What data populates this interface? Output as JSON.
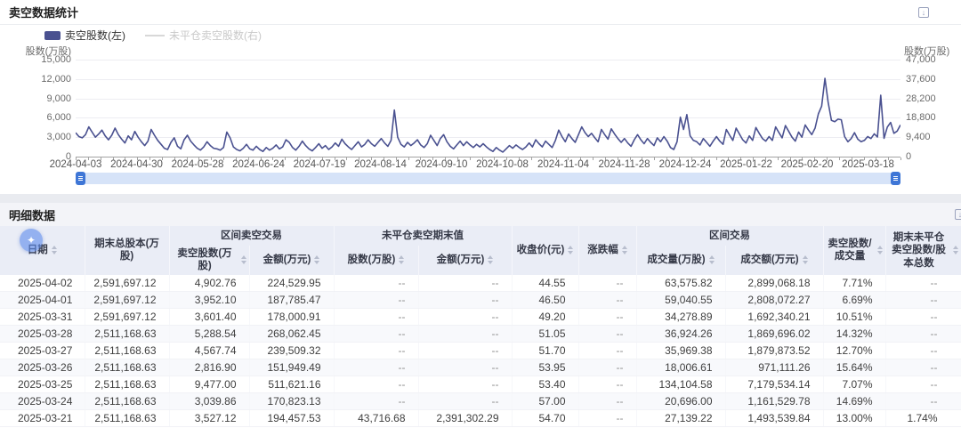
{
  "chart_panel": {
    "title": "卖空数据统计",
    "legend": [
      {
        "label": "卖空股数(左)",
        "color": "#4a5190",
        "active": true
      },
      {
        "label": "未平仓卖空股数(右)",
        "color": "#d8d8d8",
        "active": false
      }
    ],
    "ylabel_left": "股数(万股)",
    "ylabel_right": "股数(万股)"
  },
  "chart_data": {
    "type": "line",
    "title": "卖空数据统计",
    "grid": true,
    "legend_position": "top-left",
    "ylabel_left": "股数(万股)",
    "ylabel_right": "股数(万股)",
    "ylim_left": [
      0,
      15000
    ],
    "ylim_right": [
      0,
      47000
    ],
    "yticks_left": [
      "15,000",
      "12,000",
      "9,000",
      "6,000",
      "3,000",
      "0"
    ],
    "yticks_right": [
      "47,000",
      "37,600",
      "28,200",
      "18,800",
      "9,400",
      "0"
    ],
    "xticks": [
      "2024-04-03",
      "2024-04-30",
      "2024-05-28",
      "2024-06-24",
      "2024-07-19",
      "2024-08-14",
      "2024-09-10",
      "2024-10-08",
      "2024-11-04",
      "2024-11-28",
      "2024-12-24",
      "2025-01-22",
      "2025-02-20",
      "2025-03-18"
    ],
    "series": [
      {
        "name": "卖空股数(左)",
        "axis": "left",
        "color": "#4a5190",
        "values": [
          3700,
          3100,
          2900,
          3400,
          4600,
          3800,
          3000,
          3500,
          4100,
          3200,
          2600,
          3300,
          4400,
          3400,
          2700,
          2100,
          3200,
          2600,
          3900,
          3000,
          2300,
          1700,
          2400,
          4200,
          3300,
          2500,
          1900,
          1300,
          1100,
          2200,
          2900,
          1600,
          1200,
          2600,
          3300,
          2400,
          1800,
          1300,
          1000,
          1500,
          2300,
          1700,
          1300,
          1200,
          1000,
          1400,
          3800,
          2900,
          1500,
          1100,
          900,
          1300,
          1900,
          1200,
          1000,
          1600,
          1100,
          800,
          1400,
          1000,
          1300,
          1800,
          1200,
          1500,
          2600,
          2200,
          1400,
          1000,
          1600,
          2400,
          1700,
          1200,
          900,
          1400,
          2000,
          1300,
          1700,
          1100,
          1500,
          2100,
          1600,
          2700,
          2000,
          1500,
          1100,
          1700,
          2300,
          1500,
          1900,
          2600,
          2000,
          1600,
          2200,
          2800,
          2100,
          1600,
          2500,
          7200,
          3000,
          1900,
          1500,
          2200,
          1700,
          2100,
          2600,
          1800,
          1400,
          2000,
          3300,
          2500,
          1700,
          2800,
          3400,
          2300,
          1600,
          1200,
          1800,
          2400,
          1700,
          2300,
          1800,
          1400,
          1900,
          1500,
          2000,
          1500,
          1100,
          800,
          1400,
          1000,
          700,
          1200,
          1700,
          1300,
          1800,
          1400,
          1100,
          1500,
          2100,
          1500,
          2600,
          2000,
          1500,
          2400,
          1900,
          1400,
          2500,
          4100,
          3100,
          2300,
          3500,
          2800,
          2200,
          3400,
          4600,
          3700,
          3100,
          3600,
          2900,
          2300,
          4200,
          3400,
          2700,
          4300,
          3500,
          2800,
          2200,
          2800,
          2100,
          1600,
          2600,
          3400,
          2600,
          2000,
          2800,
          2200,
          1700,
          2900,
          2300,
          3100,
          2400,
          1400,
          1100,
          2300,
          6100,
          4200,
          6500,
          3200,
          2500,
          2300,
          1800,
          2800,
          2200,
          1600,
          2400,
          3100,
          2400,
          1900,
          4200,
          3300,
          2500,
          4400,
          3500,
          2600,
          2100,
          3200,
          2500,
          4500,
          3600,
          2800,
          2400,
          3100,
          2500,
          4600,
          3700,
          2900,
          4800,
          3900,
          3000,
          2400,
          3800,
          3000,
          4900,
          4100,
          3400,
          4400,
          6600,
          7800,
          12100,
          8400,
          5600,
          5400,
          5800,
          5700,
          3100,
          2300,
          2800,
          3700,
          2700,
          2300,
          2500,
          3100,
          2800,
          3527,
          3040,
          9477,
          2817,
          4568,
          5289,
          3601,
          3952,
          4903
        ]
      },
      {
        "name": "未平仓卖空股数(右)",
        "axis": "right",
        "color": "#d8d8d8",
        "disabled": true,
        "values": []
      }
    ]
  },
  "table_panel": {
    "title": "明细数据",
    "floating_badge_glyph": "✦",
    "header": {
      "date": "日期",
      "total_capital": "期末总股本(万股)",
      "group_short_trade": "区间卖空交易",
      "short_shares": "卖空股数(万股)",
      "short_amount": "金额(万元)",
      "group_open_short": "未平仓卖空期末值",
      "open_shares": "股数(万股)",
      "open_amount": "金额(万元)",
      "close_price": "收盘价(元)",
      "change_pct": "涨跌幅",
      "group_interval_trade": "区间交易",
      "volume": "成交量(万股)",
      "turnover": "成交额(万元)",
      "ratio_volume": "卖空股数/成交量",
      "ratio_capital": "期末未平仓卖空股数/股本总数"
    },
    "rows": [
      [
        "2025-04-02",
        "2,591,697.12",
        "4,902.76",
        "224,529.95",
        "--",
        "--",
        "44.55",
        "--",
        "63,575.82",
        "2,899,068.18",
        "7.71%",
        "--"
      ],
      [
        "2025-04-01",
        "2,591,697.12",
        "3,952.10",
        "187,785.47",
        "--",
        "--",
        "46.50",
        "--",
        "59,040.55",
        "2,808,072.27",
        "6.69%",
        "--"
      ],
      [
        "2025-03-31",
        "2,591,697.12",
        "3,601.40",
        "178,000.91",
        "--",
        "--",
        "49.20",
        "--",
        "34,278.89",
        "1,692,340.21",
        "10.51%",
        "--"
      ],
      [
        "2025-03-28",
        "2,511,168.63",
        "5,288.54",
        "268,062.45",
        "--",
        "--",
        "51.05",
        "--",
        "36,924.26",
        "1,869,696.02",
        "14.32%",
        "--"
      ],
      [
        "2025-03-27",
        "2,511,168.63",
        "4,567.74",
        "239,509.32",
        "--",
        "--",
        "51.70",
        "--",
        "35,969.38",
        "1,879,873.52",
        "12.70%",
        "--"
      ],
      [
        "2025-03-26",
        "2,511,168.63",
        "2,816.90",
        "151,949.49",
        "--",
        "--",
        "53.95",
        "--",
        "18,006.61",
        "971,111.26",
        "15.64%",
        "--"
      ],
      [
        "2025-03-25",
        "2,511,168.63",
        "9,477.00",
        "511,621.16",
        "--",
        "--",
        "53.40",
        "--",
        "134,104.58",
        "7,179,534.14",
        "7.07%",
        "--"
      ],
      [
        "2025-03-24",
        "2,511,168.63",
        "3,039.86",
        "170,823.13",
        "--",
        "--",
        "57.00",
        "--",
        "20,696.00",
        "1,161,529.78",
        "14.69%",
        "--"
      ],
      [
        "2025-03-21",
        "2,511,168.63",
        "3,527.12",
        "194,457.53",
        "43,716.68",
        "2,391,302.29",
        "54.70",
        "--",
        "27,139.22",
        "1,493,539.84",
        "13.00%",
        "1.74%"
      ]
    ]
  }
}
